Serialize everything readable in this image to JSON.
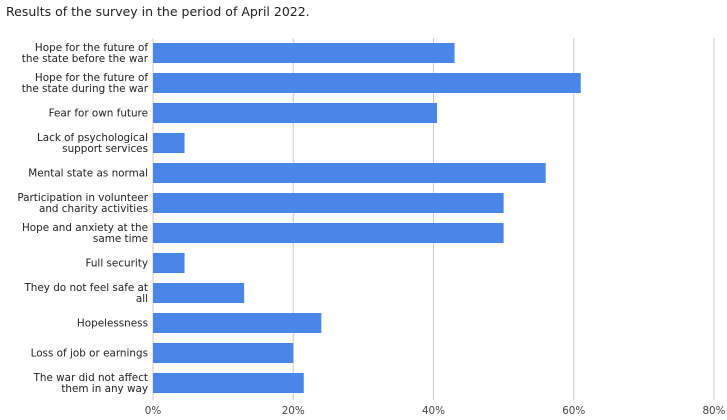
{
  "title": "Results of the survey in the period of April 2022.",
  "chart_data": {
    "type": "bar",
    "orientation": "horizontal",
    "title": "Results of the survey in the period of April 2022.",
    "xlabel": "",
    "ylabel": "",
    "categories": [
      [
        "Hope for the future of",
        "the state before the war"
      ],
      [
        "Hope for the future of",
        "the state during the war"
      ],
      [
        "Fear for own future"
      ],
      [
        "Lack of psychological",
        "support services"
      ],
      [
        "Mental state as normal"
      ],
      [
        "Participation in volunteer",
        "and charity activities"
      ],
      [
        "Hope and anxiety at the",
        "same time"
      ],
      [
        "Full security"
      ],
      [
        "They do not feel safe at",
        "all"
      ],
      [
        "Hopelessness"
      ],
      [
        "Loss of job or earnings"
      ],
      [
        "The war did not affect",
        "them in any way"
      ]
    ],
    "values": [
      43,
      61,
      40.5,
      4.5,
      56,
      50,
      50,
      4.5,
      13,
      24,
      20,
      21.5
    ],
    "xlim": [
      0,
      80
    ],
    "xticks": [
      0,
      20,
      40,
      60,
      80
    ],
    "tick_suffix": "%",
    "grid": true,
    "legend": "none",
    "bar_color": "#4a86e8",
    "grid_color": "#cccccc"
  }
}
